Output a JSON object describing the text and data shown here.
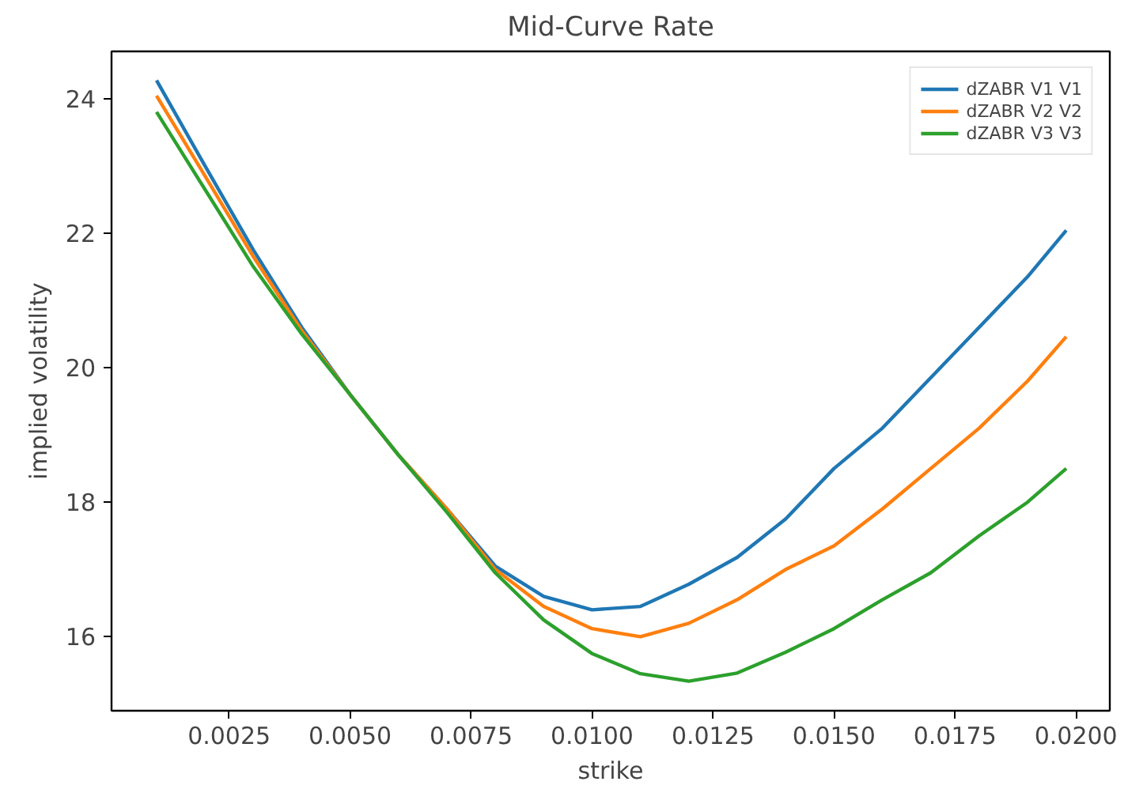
{
  "chart_data": {
    "type": "line",
    "title": "Mid-Curve Rate",
    "xlabel": "strike",
    "ylabel": "implied volatility",
    "x": [
      0.001,
      0.002,
      0.003,
      0.004,
      0.005,
      0.006,
      0.007,
      0.008,
      0.009,
      0.01,
      0.011,
      0.012,
      0.013,
      0.014,
      0.015,
      0.016,
      0.017,
      0.018,
      0.019,
      0.0198
    ],
    "series": [
      {
        "name": "dZABR V1 V1",
        "color": "#1f77b4",
        "values": [
          24.27,
          23.0,
          21.75,
          20.6,
          19.6,
          18.7,
          17.9,
          17.05,
          16.6,
          16.4,
          16.45,
          16.78,
          17.18,
          17.75,
          18.5,
          19.1,
          19.85,
          20.6,
          21.35,
          22.04
        ]
      },
      {
        "name": "dZABR V2 V2",
        "color": "#ff7f0e",
        "values": [
          24.04,
          22.85,
          21.65,
          20.55,
          19.6,
          18.7,
          17.9,
          17.0,
          16.45,
          16.12,
          16.0,
          16.2,
          16.55,
          17.0,
          17.35,
          17.9,
          18.5,
          19.1,
          19.8,
          20.46
        ]
      },
      {
        "name": "dZABR V3 V3",
        "color": "#2ca02c",
        "values": [
          23.8,
          22.65,
          21.5,
          20.5,
          19.6,
          18.7,
          17.85,
          16.95,
          16.25,
          15.75,
          15.45,
          15.34,
          15.46,
          15.77,
          16.12,
          16.55,
          16.95,
          17.5,
          18.0,
          18.5
        ]
      }
    ],
    "xlim": [
      7e-05,
      0.0207
    ],
    "ylim": [
      14.9,
      24.7
    ],
    "xticks": [
      {
        "value": 0.0025,
        "label": "0.0025"
      },
      {
        "value": 0.005,
        "label": "0.0050"
      },
      {
        "value": 0.0075,
        "label": "0.0075"
      },
      {
        "value": 0.01,
        "label": "0.0100"
      },
      {
        "value": 0.0125,
        "label": "0.0125"
      },
      {
        "value": 0.015,
        "label": "0.0150"
      },
      {
        "value": 0.0175,
        "label": "0.0175"
      },
      {
        "value": 0.02,
        "label": "0.0200"
      }
    ],
    "yticks": [
      16,
      18,
      20,
      22,
      24
    ],
    "legend": "top right",
    "line_style": "solid",
    "marker": "none",
    "grid": false
  }
}
